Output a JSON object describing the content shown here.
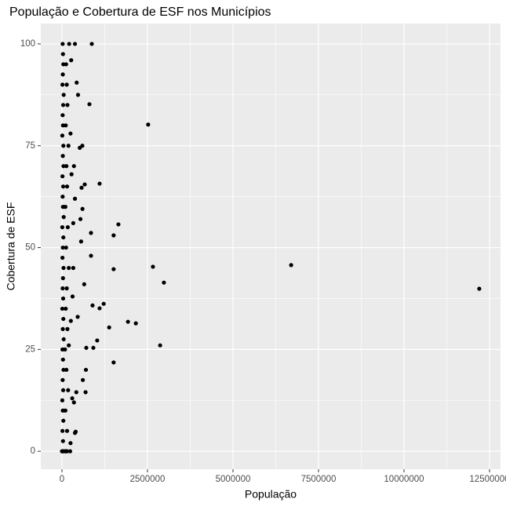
{
  "chart_data": {
    "type": "scatter",
    "title": "População e Cobertura de ESF nos Municípios",
    "x_label": "População",
    "y_label": "Cobertura de ESF",
    "color": "#000000",
    "grid": true,
    "xlim": [
      -619000,
      12821000
    ],
    "ylim": [
      -4.4,
      105
    ],
    "xticks": [
      0,
      2500000,
      5000000,
      7500000,
      10000000,
      12500000
    ],
    "yticks": [
      0,
      25,
      50,
      75,
      100
    ],
    "xminor": [
      1250000,
      3750000,
      6250000,
      8750000,
      11250000
    ],
    "yminor": [
      12.5,
      37.5,
      62.5,
      87.5
    ],
    "x": [
      872000,
      2520000,
      803000,
      1100000,
      1650000,
      1510000,
      1510000,
      2660000,
      2980000,
      6700000,
      12200000,
      1220000,
      1100000,
      894000,
      1930000,
      2160000,
      1380000,
      1030000,
      917000,
      2870000,
      1510000,
      711000,
      849000,
      849000,
      573000,
      665000,
      596000,
      520000,
      430000,
      380000,
      470000,
      600000,
      540000,
      650000,
      700000,
      420000,
      560000,
      300000,
      350000,
      400000,
      250000,
      330000,
      610000,
      690000,
      460000,
      380000,
      20000,
      30000,
      15000,
      40000,
      25000,
      10000,
      35000,
      20000,
      45000,
      30000,
      15000,
      50000,
      25000,
      40000,
      10000,
      35000,
      20000,
      30000,
      45000,
      15000,
      25000,
      40000,
      10000,
      50000,
      30000,
      20000,
      35000,
      15000,
      45000,
      25000,
      40000,
      10000,
      30000,
      20000,
      35000,
      50000,
      15000,
      25000,
      40000,
      30000,
      20000,
      120000,
      150000,
      100000,
      180000,
      130000,
      90000,
      160000,
      110000,
      140000,
      200000,
      120000,
      170000,
      100000,
      150000,
      130000,
      190000,
      110000,
      160000,
      140000,
      120000,
      210000,
      0,
      50000,
      100000,
      150000,
      240000,
      380000,
      200000,
      260000,
      310000,
      330000,
      280000,
      350000,
      250000,
      270000
    ],
    "y": [
      100,
      80.2,
      85.2,
      65.7,
      55.7,
      53,
      44.7,
      45.3,
      41.4,
      45.7,
      39.9,
      36.2,
      35.1,
      35.8,
      31.8,
      31.4,
      30.4,
      27.2,
      25.4,
      26,
      21.8,
      25.4,
      48,
      53.6,
      64.7,
      65.5,
      75,
      74.5,
      90.5,
      100,
      87.5,
      59.5,
      57,
      41,
      20,
      14.5,
      51.5,
      13,
      12,
      4.8,
      2,
      45,
      17.5,
      14.5,
      33,
      62,
      0,
      2.5,
      5,
      7.5,
      10,
      12.5,
      15,
      17.5,
      20,
      22.5,
      25,
      27.5,
      30,
      32.5,
      35,
      37.5,
      40,
      42.5,
      45,
      47.5,
      50,
      52.5,
      55,
      57.5,
      60,
      62.5,
      65,
      67.5,
      70,
      72.5,
      75,
      77.5,
      80,
      82.5,
      85,
      87.5,
      90,
      92.5,
      95,
      97.5,
      100,
      0,
      5,
      10,
      15,
      20,
      25,
      30,
      35,
      40,
      45,
      50,
      55,
      60,
      65,
      70,
      75,
      80,
      85,
      90,
      95,
      100,
      0,
      0,
      0,
      0,
      0,
      4.5,
      26,
      32,
      38,
      56,
      68,
      70,
      78,
      96
    ]
  }
}
